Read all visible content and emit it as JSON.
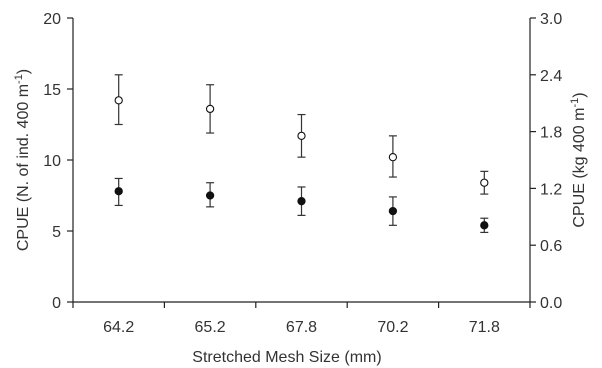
{
  "chart_data": {
    "type": "scatter",
    "xlabel": "Stretched Mesh Size (mm)",
    "ylabel_left_main": "CPUE (N. of ind. 400 m",
    "ylabel_left_sup": "-1",
    "ylabel_left_end": ")",
    "ylabel_right_main": "CPUE (kg 400 m",
    "ylabel_right_sup": "-1",
    "ylabel_right_end": ")",
    "categories": [
      "64.2",
      "65.2",
      "67.8",
      "70.2",
      "71.8"
    ],
    "y_left": {
      "ylim": [
        0,
        20
      ],
      "ticks": [
        "0",
        "5",
        "10",
        "15",
        "20"
      ]
    },
    "y_right": {
      "ylim": [
        0.0,
        3.0
      ],
      "ticks": [
        "0.0",
        "0.6",
        "1.2",
        "1.8",
        "2.4",
        "3.0"
      ]
    },
    "grid": false,
    "legend": "none",
    "series": [
      {
        "marker": "open-circle",
        "axis": "left",
        "values": [
          14.2,
          13.6,
          11.7,
          10.2,
          8.4
        ],
        "err_high": [
          16.0,
          15.3,
          13.2,
          11.7,
          9.2
        ],
        "err_low": [
          12.5,
          11.9,
          10.2,
          8.8,
          7.6
        ]
      },
      {
        "marker": "filled-circle",
        "axis": "left",
        "values": [
          7.8,
          7.5,
          7.1,
          6.4,
          5.4
        ],
        "err_high": [
          8.7,
          8.4,
          8.1,
          7.4,
          5.9
        ],
        "err_low": [
          6.8,
          6.7,
          6.1,
          5.4,
          4.9
        ]
      }
    ]
  }
}
